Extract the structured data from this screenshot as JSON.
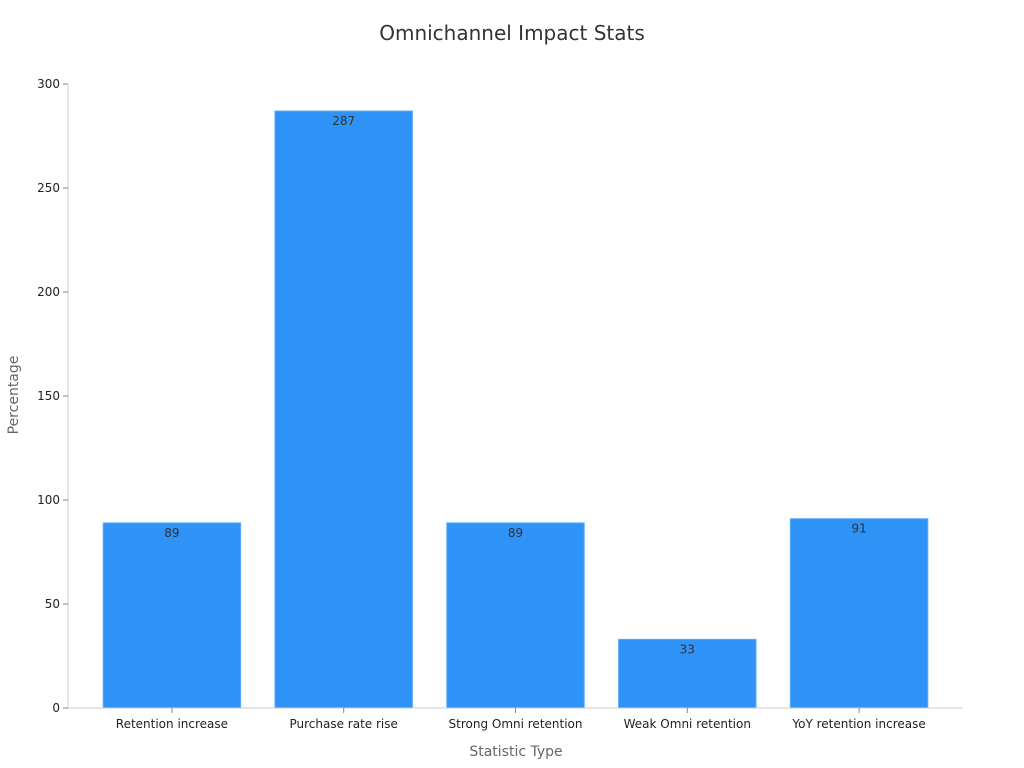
{
  "chart_data": {
    "type": "bar",
    "title": "Omnichannel Impact Stats",
    "xlabel": "Statistic Type",
    "ylabel": "Percentage",
    "categories": [
      "Retention increase",
      "Purchase rate rise",
      "Strong Omni retention",
      "Weak Omni retention",
      "YoY retention increase"
    ],
    "values": [
      89,
      287,
      89,
      33,
      91
    ],
    "ylim": [
      0,
      300
    ],
    "yticks": [
      0,
      50,
      100,
      150,
      200,
      250,
      300
    ],
    "grid": false,
    "legend": "none",
    "colors": {
      "bar_fill": "#2f92f7",
      "bar_stroke": "#5aaaf9"
    }
  }
}
